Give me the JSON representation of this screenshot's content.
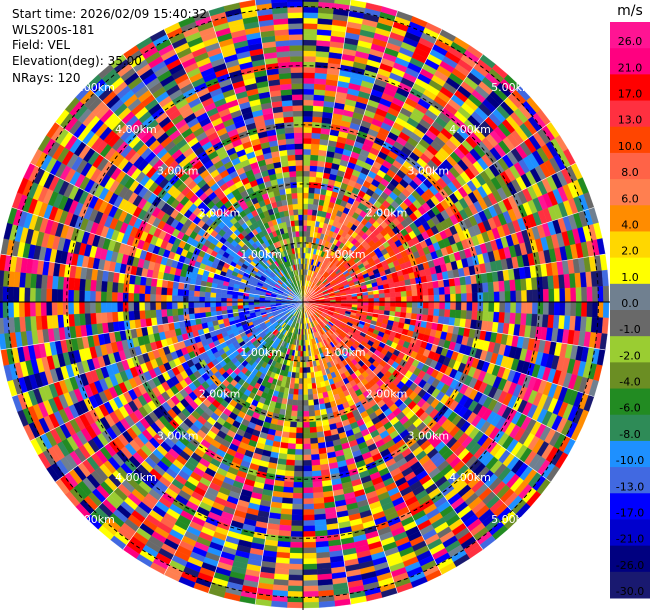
{
  "header": {
    "start_time": "Start time: 2026/02/09 15:40:32",
    "station": "WLS200s-181",
    "field": "Field: VEL",
    "elevation": "Elevation(deg): 35.00",
    "nrays": "NRays: 120"
  },
  "chart_data": {
    "type": "heatmap",
    "projection": "polar",
    "field": "VEL",
    "n_rays": 120,
    "elevation_deg": 35.0,
    "range_rings_km": [
      1.0,
      2.0,
      3.0,
      4.0,
      5.0
    ],
    "range_ring_labels": [
      "1.00km",
      "2.00km",
      "3.00km",
      "4.00km",
      "5.00km"
    ],
    "colorbar": {
      "unit": "m/s",
      "ticks": [
        "26.0",
        "21.0",
        "17.0",
        "13.0",
        "10.0",
        "8.0",
        "6.0",
        "4.0",
        "2.0",
        "1.0",
        "0.0",
        "-1.0",
        "-2.0",
        "-4.0",
        "-6.0",
        "-8.0",
        "-10.0",
        "-13.0",
        "-17.0",
        "-21.0",
        "-26.0",
        "-30.0"
      ],
      "colors": [
        "#ff1493",
        "#ff0080",
        "#ff0000",
        "#ff3040",
        "#ff4500",
        "#ff6347",
        "#ff7f50",
        "#ff8c00",
        "#ffd700",
        "#ffff00",
        "#708090",
        "#696969",
        "#9acd32",
        "#6b8e23",
        "#228b22",
        "#2e8b57",
        "#1e90ff",
        "#4169e1",
        "#0000ff",
        "#0000cd",
        "#000080",
        "#191970"
      ]
    }
  }
}
